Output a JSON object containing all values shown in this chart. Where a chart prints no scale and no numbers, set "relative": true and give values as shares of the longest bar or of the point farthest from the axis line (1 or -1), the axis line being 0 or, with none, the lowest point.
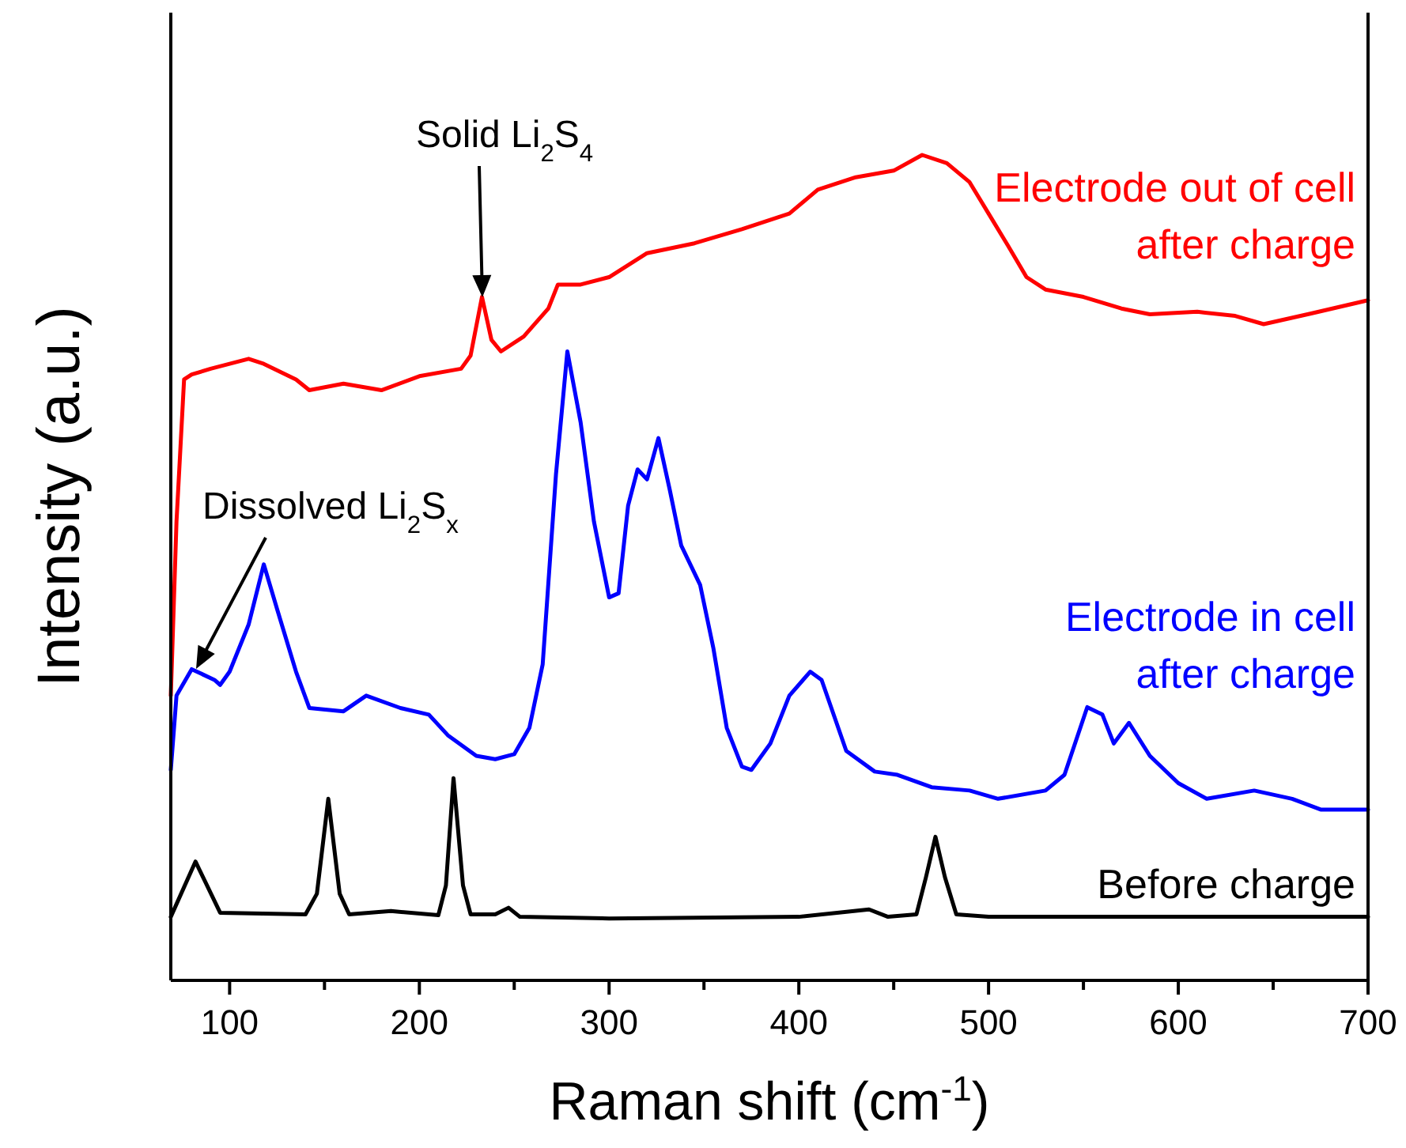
{
  "chart_data": {
    "type": "line",
    "relative": true,
    "xlabel": "Raman shift (cm$^{-1}$)",
    "ylabel": "Intensity (a.u.)",
    "xlim": [
      69,
      700
    ],
    "xticks": [
      100,
      {
        "value": 150,
        "label": null
      },
      200,
      {
        "value": 250,
        "label": null
      },
      300,
      {
        "value": 350,
        "label": null
      },
      400,
      {
        "value": 450,
        "label": null
      },
      500,
      {
        "value": 550,
        "label": null
      },
      600,
      {
        "value": 650,
        "label": null
      },
      700
    ],
    "tick_labels": "x",
    "grid": false,
    "marker": "none",
    "line_style": "solid",
    "annotations": [
      "Solid Li$_{2}$S$_{4}$",
      "Dissolved Li$_{2}$S$_{x}$"
    ],
    "series": [
      {
        "name": "Electrode out of cell\nafter charge",
        "color": "#ff0000",
        "x": [
          69,
          72,
          76,
          80,
          90,
          110,
          118,
          135,
          142,
          160,
          180,
          200,
          222,
          227,
          233,
          238,
          243,
          255,
          268,
          273,
          285,
          300,
          320,
          345,
          370,
          395,
          410,
          430,
          450,
          465,
          478,
          490,
          500,
          510,
          520,
          530,
          550,
          570,
          585,
          610,
          630,
          645,
          670,
          700
        ],
        "values": [
          0.345,
          0.556,
          0.728,
          0.734,
          0.741,
          0.753,
          0.747,
          0.728,
          0.715,
          0.723,
          0.715,
          0.732,
          0.741,
          0.757,
          0.828,
          0.776,
          0.762,
          0.78,
          0.814,
          0.843,
          0.843,
          0.852,
          0.881,
          0.893,
          0.91,
          0.929,
          0.958,
          0.973,
          0.981,
          1,
          0.99,
          0.967,
          0.929,
          0.891,
          0.852,
          0.837,
          0.828,
          0.814,
          0.807,
          0.81,
          0.805,
          0.795,
          0.808,
          0.824
        ]
      },
      {
        "name": "Electrode in cell\nafter charge",
        "color": "#0000ff",
        "x": [
          69,
          72,
          80,
          92,
          95,
          100,
          110,
          118,
          125,
          135,
          142,
          160,
          172,
          190,
          205,
          215,
          230,
          240,
          250,
          258,
          265,
          272,
          278,
          285,
          292,
          300,
          305,
          310,
          315,
          320,
          326,
          332,
          338,
          348,
          355,
          362,
          370,
          375,
          385,
          395,
          406,
          412,
          425,
          440,
          452,
          470,
          490,
          505,
          530,
          540,
          552,
          560,
          566,
          574,
          585,
          600,
          615,
          640,
          660,
          675,
          700
        ],
        "values": [
          0.255,
          0.345,
          0.377,
          0.364,
          0.358,
          0.374,
          0.431,
          0.504,
          0.45,
          0.374,
          0.33,
          0.326,
          0.345,
          0.33,
          0.322,
          0.297,
          0.272,
          0.268,
          0.274,
          0.306,
          0.383,
          0.613,
          0.762,
          0.676,
          0.556,
          0.464,
          0.469,
          0.575,
          0.619,
          0.607,
          0.657,
          0.594,
          0.527,
          0.479,
          0.402,
          0.306,
          0.259,
          0.255,
          0.287,
          0.345,
          0.374,
          0.364,
          0.278,
          0.253,
          0.249,
          0.234,
          0.23,
          0.22,
          0.23,
          0.249,
          0.331,
          0.322,
          0.287,
          0.312,
          0.272,
          0.239,
          0.22,
          0.23,
          0.22,
          0.207,
          0.207
        ]
      },
      {
        "name": "Before charge",
        "color": "#000000",
        "x": [
          69,
          82,
          95,
          140,
          146,
          152,
          158,
          163,
          185,
          210,
          214,
          218,
          223,
          227,
          240,
          247,
          253,
          300,
          400,
          437,
          447,
          462,
          467,
          472,
          477,
          483,
          500,
          700
        ],
        "values": [
          0.077,
          0.144,
          0.082,
          0.08,
          0.105,
          0.22,
          0.105,
          0.08,
          0.084,
          0.079,
          0.115,
          0.245,
          0.115,
          0.08,
          0.08,
          0.088,
          0.077,
          0.075,
          0.077,
          0.086,
          0.077,
          0.08,
          0.125,
          0.174,
          0.125,
          0.08,
          0.077,
          0.077
        ]
      }
    ]
  }
}
